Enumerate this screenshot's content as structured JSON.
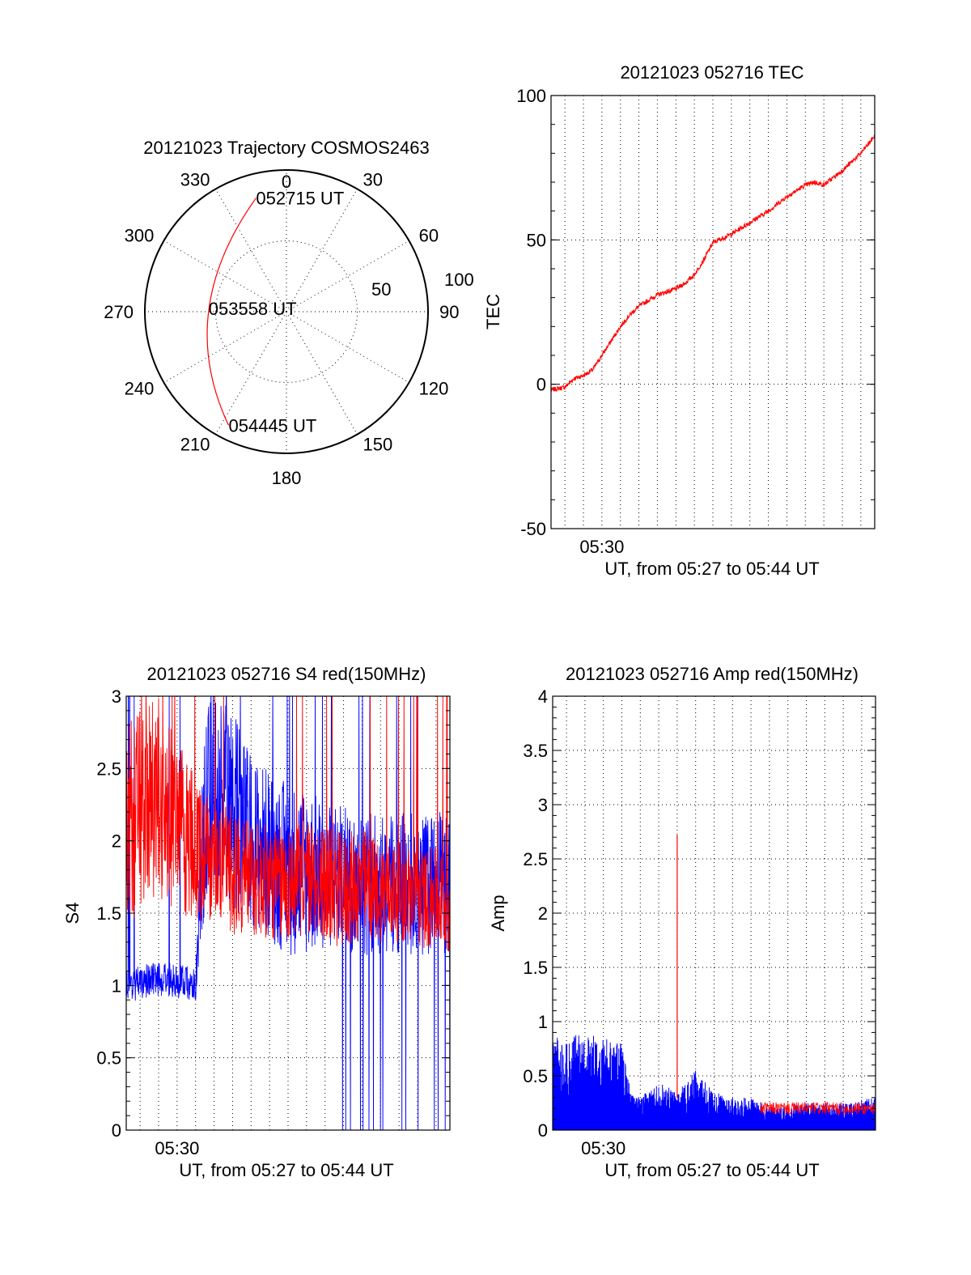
{
  "chart_data": [
    {
      "type": "polar",
      "title": "20121023 Trajectory COSMOS2463",
      "azimuth_labels": [
        "0",
        "30",
        "60",
        "90",
        "120",
        "150",
        "180",
        "210",
        "240",
        "270",
        "300",
        "330"
      ],
      "radial_ticks": [
        50,
        100
      ],
      "radial_tick_labels": [
        "50",
        "100"
      ],
      "series_color": "#ff0000",
      "trajectory": {
        "start": {
          "label": "052715 UT",
          "azimuth": 345,
          "radius": 83
        },
        "mid": {
          "label": "053558 UT",
          "azimuth": 270,
          "radius": 55
        },
        "end": {
          "label": "054445 UT",
          "azimuth": 207,
          "radius": 90
        }
      }
    },
    {
      "type": "line",
      "title": "20121023 052716 TEC",
      "ylabel": "TEC",
      "xlabel": "UT, from 05:27 to 05:44 UT",
      "xlim_min": [
        27.25,
        44.75
      ],
      "ylim": [
        -50,
        100
      ],
      "yticks": [
        -50,
        0,
        50,
        100
      ],
      "ytick_labels": [
        "-50",
        "0",
        "50",
        "100"
      ],
      "xtick_labels": [
        {
          "label": "05:30",
          "minute": 30
        }
      ],
      "series": [
        {
          "name": "TEC",
          "color": "#ff0000",
          "x_min": [
            27.25,
            28,
            28.5,
            29,
            29.5,
            30,
            30.5,
            31,
            31.5,
            32,
            33,
            33.5,
            34,
            34.5,
            35,
            35.5,
            36,
            37,
            38,
            39,
            40,
            40.5,
            41,
            41.5,
            42,
            43,
            44,
            44.75
          ],
          "values": [
            -2,
            -1,
            2,
            3,
            5,
            10,
            15,
            20,
            24,
            27,
            31,
            32,
            33,
            35,
            38,
            43,
            49,
            52,
            56,
            60,
            65,
            67,
            69,
            70,
            69,
            74,
            80,
            86
          ]
        }
      ]
    },
    {
      "type": "line",
      "title": "20121023 052716 S4 red(150MHz)",
      "ylabel": "S4",
      "xlabel": "UT, from 05:27 to 05:44 UT",
      "xlim_min": [
        27.25,
        44.75
      ],
      "ylim": [
        0,
        3
      ],
      "yticks": [
        0,
        0.5,
        1,
        1.5,
        2,
        2.5,
        3
      ],
      "ytick_labels": [
        "0",
        "0.5",
        "1",
        "1.5",
        "2",
        "2.5",
        "3"
      ],
      "xtick_labels": [
        {
          "label": "05:30",
          "minute": 30
        }
      ],
      "series": [
        {
          "name": "red (150MHz)",
          "color": "#ff0000",
          "x_min": [
            27.25,
            28,
            29,
            30,
            31,
            32,
            33,
            34,
            35,
            36,
            37,
            38,
            39,
            40,
            41,
            42,
            43,
            44,
            44.75
          ],
          "values": [
            2.1,
            2.2,
            2.3,
            2.1,
            1.95,
            1.85,
            1.8,
            1.75,
            1.7,
            1.7,
            1.75,
            1.7,
            1.65,
            1.7,
            1.65,
            1.65,
            1.6,
            1.6,
            1.55
          ],
          "spread": [
            0.7,
            0.7,
            0.7,
            0.6,
            0.5,
            0.45,
            0.45,
            0.4,
            0.4,
            0.4,
            0.4,
            0.4,
            0.4,
            0.4,
            0.35,
            0.35,
            0.35,
            0.35,
            0.35
          ]
        },
        {
          "name": "blue",
          "color": "#0000ff",
          "x_min": [
            27.25,
            28,
            29,
            30,
            31,
            31.5,
            32,
            33,
            34,
            35,
            36,
            37,
            38,
            39,
            40,
            41,
            42,
            43,
            44,
            44.75
          ],
          "values": [
            1.0,
            1.02,
            1.05,
            1.03,
            1.0,
            2.2,
            2.3,
            2.2,
            2.0,
            1.9,
            1.8,
            1.8,
            1.75,
            1.75,
            1.7,
            1.7,
            1.7,
            1.7,
            1.7,
            1.7
          ],
          "spread": [
            0.12,
            0.12,
            0.12,
            0.12,
            0.12,
            0.7,
            0.7,
            0.7,
            0.6,
            0.6,
            0.6,
            0.6,
            0.5,
            0.5,
            0.5,
            0.5,
            0.5,
            0.5,
            0.5,
            0.5
          ],
          "dropouts_from_min": 38.5
        }
      ]
    },
    {
      "type": "line",
      "title": "20121023 052716 Amp red(150MHz)",
      "ylabel": "Amp",
      "xlabel": "UT, from 05:27 to 05:44 UT",
      "xlim_min": [
        27.25,
        44.75
      ],
      "ylim": [
        0,
        4
      ],
      "yticks": [
        0,
        0.5,
        1,
        1.5,
        2,
        2.5,
        3,
        3.5,
        4
      ],
      "ytick_labels": [
        "0",
        "0.5",
        "1",
        "1.5",
        "2",
        "2.5",
        "3",
        "3.5",
        "4"
      ],
      "xtick_labels": [
        {
          "label": "05:30",
          "minute": 30
        }
      ],
      "series": [
        {
          "name": "blue",
          "color": "#0000ff",
          "x_min": [
            27.25,
            28,
            29,
            30,
            31,
            31.5,
            32,
            33,
            34,
            35,
            36,
            37,
            38,
            39,
            40,
            41,
            42,
            43,
            44,
            44.75
          ],
          "peak": [
            0.9,
            0.85,
            0.9,
            0.85,
            0.8,
            0.35,
            0.3,
            0.45,
            0.35,
            0.55,
            0.35,
            0.3,
            0.3,
            0.22,
            0.22,
            0.25,
            0.25,
            0.25,
            0.28,
            0.3
          ]
        },
        {
          "name": "red (150MHz)",
          "color": "#ff0000",
          "baseline": 0.2,
          "spike": {
            "minute": 34.0,
            "value": 2.72
          }
        }
      ]
    }
  ]
}
